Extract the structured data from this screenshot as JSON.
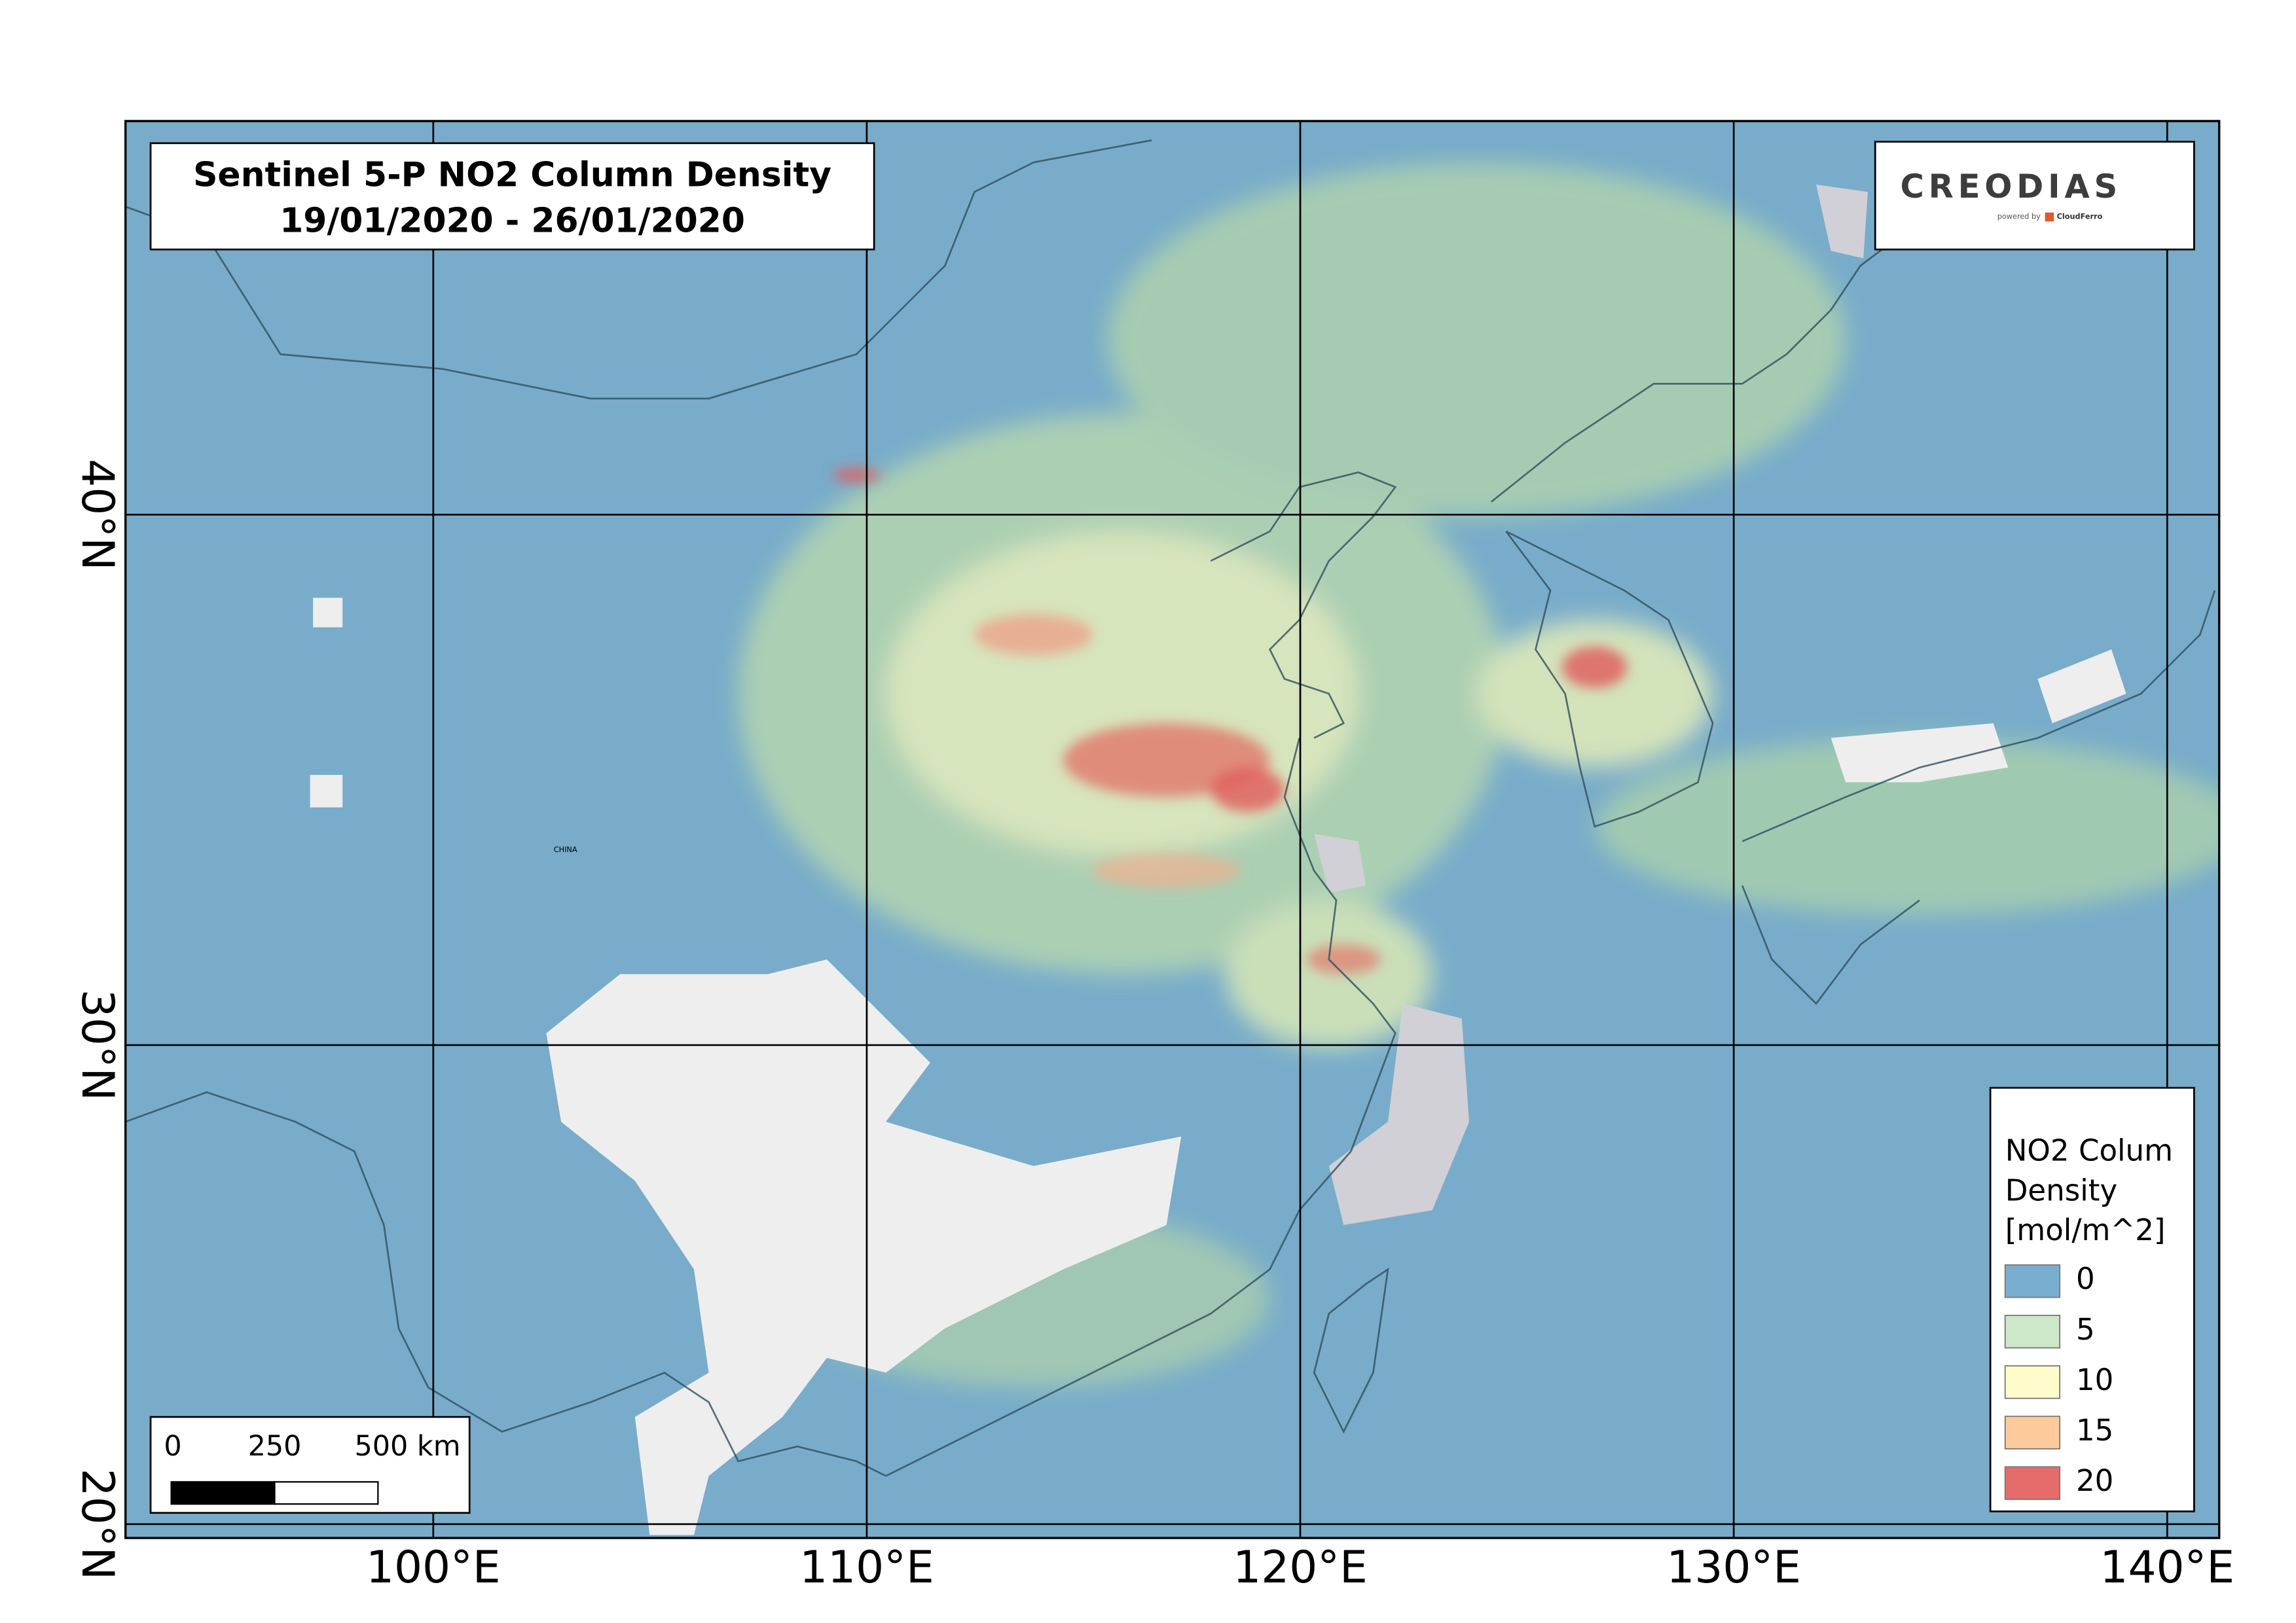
{
  "map": {
    "title": "Sentinel 5-P NO2 Column Density",
    "subtitle": "19/01/2020 - 26/01/2020",
    "projection": "mercator",
    "lonlim": [
      92.9,
      141.2
    ],
    "latlim": [
      19.7,
      46.6
    ],
    "lonticks": [
      {
        "value": 100,
        "label": "100°E"
      },
      {
        "value": 110,
        "label": "110°E"
      },
      {
        "value": 120,
        "label": "120°E"
      },
      {
        "value": 130,
        "label": "130°E"
      },
      {
        "value": 140,
        "label": "140°E"
      }
    ],
    "latticks": [
      {
        "value": 20,
        "label": "20°N"
      },
      {
        "value": 30,
        "label": "30°N"
      },
      {
        "value": 40,
        "label": "40°N"
      }
    ],
    "grid": true,
    "logo": {
      "name": "CREODIAS",
      "powered_by": "powered by",
      "partner": "CloudFerro"
    },
    "legend": {
      "title": [
        "NO2 Colum",
        "Density",
        "[mol/m^2]"
      ],
      "items": [
        {
          "value": 0,
          "color": "#7aaed0"
        },
        {
          "value": 5,
          "color": "#cde8c8"
        },
        {
          "value": 10,
          "color": "#fffccc"
        },
        {
          "value": 15,
          "color": "#fdcb9b"
        },
        {
          "value": 20,
          "color": "#e66b6b"
        }
      ]
    },
    "scalebar": {
      "ticks": [
        0,
        250,
        {
          "value": 500,
          "label": "500 km"
        }
      ]
    }
  }
}
